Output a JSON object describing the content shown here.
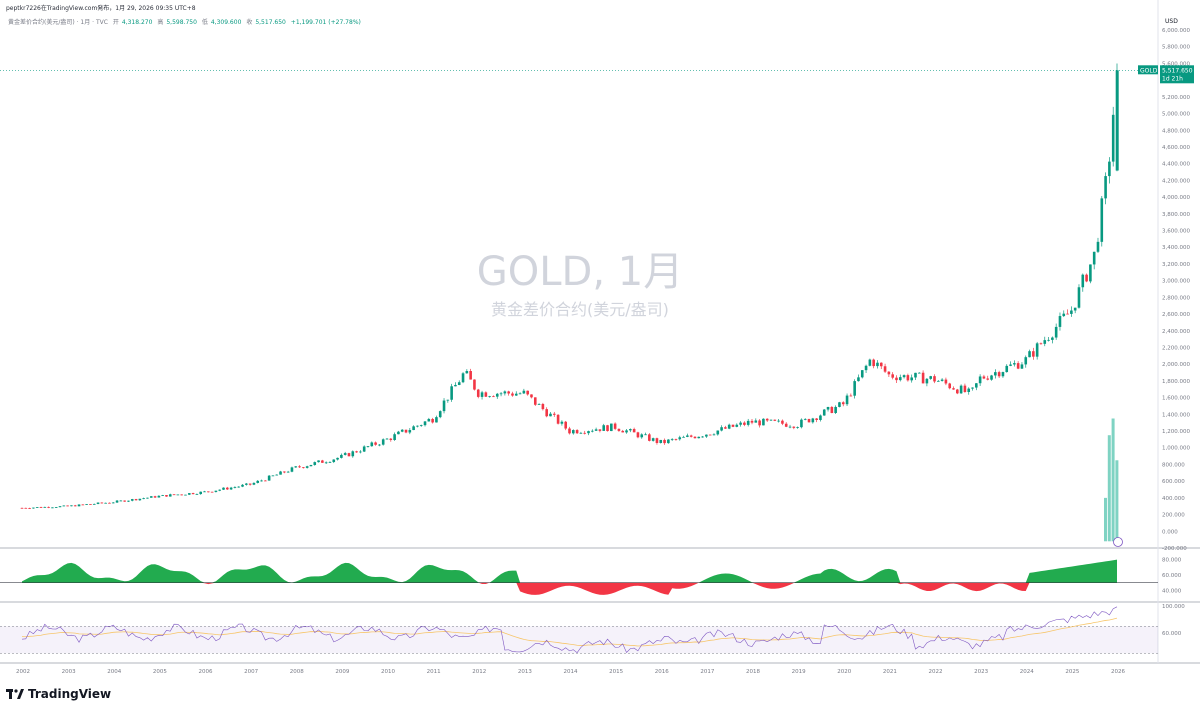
{
  "header": {
    "caption": "peptkr7226在TradingView.com発布，1月 29, 2026 09:35 UTC+8"
  },
  "legend": {
    "symbol_desc": "黄金差价合约(美元/盎司) · 1月 · TVC",
    "open_label": "开",
    "open": "4,318.270",
    "high_label": "高",
    "high": "5,598.750",
    "low_label": "低",
    "low": "4,309.600",
    "close_label": "收",
    "close": "5,517.650",
    "change": "+1,199.701 (+27.78%)"
  },
  "watermark": {
    "title": "GOLD, 1月",
    "subtitle": "黄金差价合约(美元/盎司)"
  },
  "price_tag": {
    "symbol": "GOLD",
    "price": "5,517.650",
    "countdown": "1d 21h"
  },
  "axis": {
    "currency": "USD",
    "price_ticks": [
      "6,000.000",
      "5,800.000",
      "5,600.000",
      "5,400.000",
      "5,200.000",
      "5,000.000",
      "4,800.000",
      "4,600.000",
      "4,400.000",
      "4,200.000",
      "4,000.000",
      "3,800.000",
      "3,600.000",
      "3,400.000",
      "3,200.000",
      "3,000.000",
      "2,800.000",
      "2,600.000",
      "2,400.000",
      "2,200.000",
      "2,000.000",
      "1,800.000",
      "1,600.000",
      "1,400.000",
      "1,200.000",
      "1,000.000",
      "800.000",
      "600.000",
      "400.000",
      "200.000",
      "0.000",
      "-200.000"
    ],
    "osc_ticks": [
      "80.000",
      "60.000",
      "40.000"
    ],
    "rsi_ticks": [
      "100.000",
      "60.000"
    ],
    "years": [
      "2002",
      "2003",
      "2004",
      "2005",
      "2006",
      "2007",
      "2008",
      "2009",
      "2010",
      "2011",
      "2012",
      "2013",
      "2014",
      "2015",
      "2016",
      "2017",
      "2018",
      "2019",
      "2020",
      "2021",
      "2022",
      "2023",
      "2024",
      "2025",
      "2026"
    ]
  },
  "brand": {
    "name": "TradingView"
  },
  "colors": {
    "up": "#089981",
    "down": "#f23645",
    "volume": "#7fd3c3",
    "rsi": "#7e57c2",
    "rsi_ma": "#f7c66b",
    "osc_up": "#22ab4f",
    "osc_down": "#f23645"
  },
  "chart_data": {
    "type": "line",
    "title": "GOLD, 1月",
    "ylabel": "USD",
    "ylim": [
      -200,
      6000
    ],
    "x": [
      "2002",
      "2003",
      "2004",
      "2005",
      "2006",
      "2007",
      "2008",
      "2009",
      "2010",
      "2011",
      "2011.7",
      "2012",
      "2013",
      "2014",
      "2015",
      "2016",
      "2017",
      "2018",
      "2019",
      "2020",
      "2020.6",
      "2021",
      "2022",
      "2022.8",
      "2023",
      "2024",
      "2025",
      "2025.5",
      "2025.8",
      "2026"
    ],
    "series": [
      {
        "name": "GOLD",
        "values": [
          280,
          300,
          350,
          420,
          470,
          560,
          760,
          890,
          1100,
          1350,
          1900,
          1660,
          1650,
          1200,
          1250,
          1060,
          1170,
          1310,
          1280,
          1520,
          2060,
          1870,
          1820,
          1640,
          1830,
          2050,
          2650,
          3300,
          4300,
          5517.65
        ]
      }
    ],
    "last": {
      "open": 4318.27,
      "high": 5598.75,
      "low": 4309.6,
      "close": 5517.65
    },
    "volume_recent": [
      400,
      1150,
      1350,
      850
    ]
  }
}
